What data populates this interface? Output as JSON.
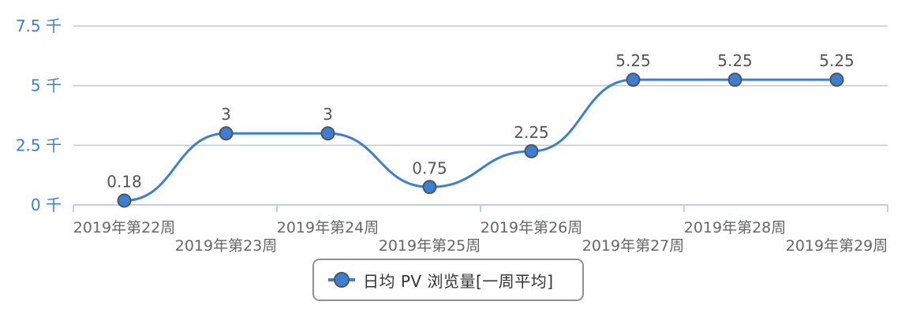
{
  "chart_data": {
    "type": "line",
    "categories": [
      "2019年第22周",
      "2019年第23周",
      "2019年第24周",
      "2019年第25周",
      "2019年第26周",
      "2019年第27周",
      "2019年第28周",
      "2019年第29周"
    ],
    "series": [
      {
        "name": "日均 PV 浏览量[一周平均]",
        "values": [
          0.18,
          3,
          3,
          0.75,
          2.25,
          5.25,
          5.25,
          5.25
        ]
      }
    ],
    "data_labels": [
      "0.18",
      "3",
      "3",
      "0.75",
      "2.25",
      "5.25",
      "5.25",
      "5.25"
    ],
    "y_ticks": [
      {
        "value": 0,
        "label": "0 千"
      },
      {
        "value": 2.5,
        "label": "2.5 千"
      },
      {
        "value": 5,
        "label": "5 千"
      },
      {
        "value": 7.5,
        "label": "7.5 千"
      }
    ],
    "ylim": [
      0,
      7.5
    ],
    "grid": true,
    "legend_position": "bottom"
  },
  "legend": {
    "label": "日均 PV 浏览量[一周平均]"
  },
  "colors": {
    "line": "#3a7fd5",
    "marker_fill": "#3a7fd5",
    "marker_stroke": "#555555",
    "grid": "#c0c8d0",
    "ytick": "#3a7fd5",
    "axis": "#c0d0e0"
  }
}
